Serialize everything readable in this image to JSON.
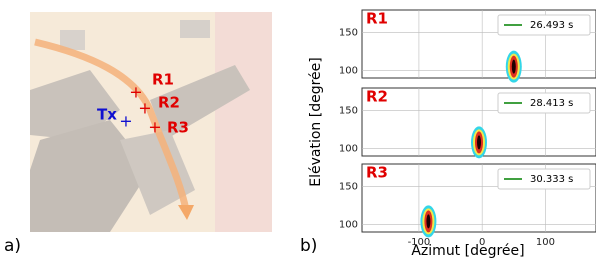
{
  "panel_a": {
    "label": "a)",
    "markers": [
      {
        "label": "Tx"
      },
      {
        "label": "R1"
      },
      {
        "label": "R2"
      },
      {
        "label": "R3"
      }
    ]
  },
  "panel_b_label": "b)",
  "chart_data": [
    {
      "type": "heatmap",
      "title": "R1",
      "legend": "26.493 s",
      "legend_color": "#008000",
      "xlim": [
        -190,
        180
      ],
      "xticks": [
        -100,
        0,
        100
      ],
      "ylim": [
        90,
        180
      ],
      "yticks": [
        100,
        150
      ],
      "x": [
        50
      ],
      "values": [
        105
      ]
    },
    {
      "type": "heatmap",
      "title": "R2",
      "legend": "28.413 s",
      "legend_color": "#008000",
      "ylabel": "Elévation [degrée]",
      "xlim": [
        -190,
        180
      ],
      "xticks": [
        -100,
        0,
        100
      ],
      "ylim": [
        90,
        180
      ],
      "yticks": [
        100,
        150
      ],
      "x": [
        -5
      ],
      "values": [
        108
      ]
    },
    {
      "type": "heatmap",
      "title": "R3",
      "legend": "30.333 s",
      "legend_color": "#008000",
      "xlabel": "Azimut [degrée]",
      "xlim": [
        -190,
        180
      ],
      "xticks": [
        -100,
        0,
        100
      ],
      "ylim": [
        90,
        180
      ],
      "yticks": [
        100,
        150
      ],
      "x": [
        -85
      ],
      "values": [
        104
      ]
    }
  ]
}
